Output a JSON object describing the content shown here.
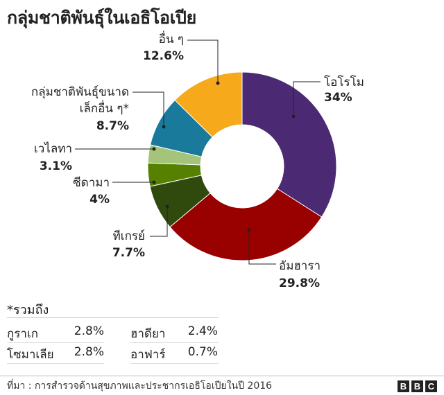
{
  "title": "กลุ่มชาติพันธุ์ในเอธิโอเปีย",
  "chart_data": {
    "type": "pie",
    "title": "กลุ่มชาติพันธุ์ในเอธิโอเปีย",
    "slices": [
      {
        "label": "โอโรโม",
        "value": 34,
        "pct_label": "34%",
        "color": "#4b2a73"
      },
      {
        "label": "อัมฮารา",
        "value": 29.8,
        "pct_label": "29.8%",
        "color": "#990000"
      },
      {
        "label": "ทีเกรย์",
        "value": 7.7,
        "pct_label": "7.7%",
        "color": "#2f4a0c"
      },
      {
        "label": "ซีดามา",
        "value": 4,
        "pct_label": "4%",
        "color": "#558000"
      },
      {
        "label": "เวไลทา",
        "value": 3.1,
        "pct_label": "3.1%",
        "color": "#a3c47a"
      },
      {
        "label": "กลุ่มชาติพันธุ์ขนาดเล็กอื่น ๆ*",
        "value": 8.7,
        "pct_label": "8.7%",
        "color": "#1a7a9c"
      },
      {
        "label": "อื่น ๆ",
        "value": 12.6,
        "pct_label": "12.6%",
        "color": "#f5a91b"
      }
    ]
  },
  "labels": {
    "oromo": {
      "name": "โอโรโม",
      "pct": "34%"
    },
    "amhara": {
      "name": "อัมฮารา",
      "pct": "29.8%"
    },
    "tigray": {
      "name": "ทีเกรย์",
      "pct": "7.7%"
    },
    "sidama": {
      "name": "ซีดามา",
      "pct": "4%"
    },
    "welayta": {
      "name": "เวไลทา",
      "pct": "3.1%"
    },
    "small": {
      "name1": "กลุ่มชาติพันธุ์ขนาด",
      "name2": "เล็กอื่น ๆ*",
      "pct": "8.7%"
    },
    "other": {
      "name": "อื่น ๆ",
      "pct": "12.6%"
    }
  },
  "note": {
    "title": "*รวมถึง",
    "rows": [
      {
        "name": "กูราเก",
        "value": "2.8%"
      },
      {
        "name": "โซมาเลีย",
        "value": "2.8%"
      },
      {
        "name": "ฮาดียา",
        "value": "2.4%"
      },
      {
        "name": "อาฟาร์",
        "value": "0.7%"
      }
    ]
  },
  "source": "ที่มา : การสำรวจด้านสุขภาพและประชากรเอธิโอเปียในปี 2016",
  "logo": [
    "B",
    "B",
    "C"
  ]
}
